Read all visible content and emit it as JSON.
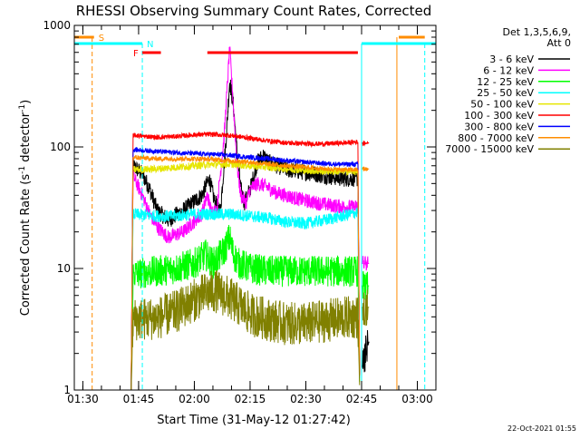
{
  "chart_data": {
    "type": "line",
    "title": "RHESSI Observing Summary Count Rates, Corrected",
    "xlabel": "Start Time (31-May-12 01:27:42)",
    "ylabel_main": "Corrected Count Rate (s",
    "ylabel_sup1": "-1",
    "ylabel_mid": " detector",
    "ylabel_sup2": "-1",
    "ylabel_end": ")",
    "yscale": "log",
    "ylim": [
      1,
      1000
    ],
    "xlim": [
      "01:27:42",
      "03:05:00"
    ],
    "x_ticks": [
      "01:30",
      "01:45",
      "02:00",
      "02:15",
      "02:30",
      "02:45",
      "03:00"
    ],
    "y_ticks": [
      {
        "value": 1,
        "label": "1"
      },
      {
        "value": 10,
        "label": "10"
      },
      {
        "value": 100,
        "label": "100"
      },
      {
        "value": 1000,
        "label": "1000"
      }
    ],
    "legend": {
      "placement": "right",
      "header": [
        "Det 1,3,5,6,9,",
        "Att 0"
      ],
      "entries": [
        {
          "label": "3 - 6 keV",
          "color": "#000000"
        },
        {
          "label": "6 - 12 keV",
          "color": "#ff00ff"
        },
        {
          "label": "12 - 25 keV",
          "color": "#00ff00"
        },
        {
          "label": "25 - 50 keV",
          "color": "#00ffff"
        },
        {
          "label": "50 - 100 keV",
          "color": "#e6e600"
        },
        {
          "label": "100 - 300 keV",
          "color": "#ff0000"
        },
        {
          "label": "300 - 800 keV",
          "color": "#0000ff"
        },
        {
          "label": "800 - 7000 keV",
          "color": "#ff8c00"
        },
        {
          "label": "7000 - 15000 keV",
          "color": "#808000"
        }
      ]
    },
    "series": [
      {
        "name": "3 - 6 keV",
        "color": "#000000",
        "noise": 0.07,
        "points": [
          [
            "01:43:00",
            1
          ],
          [
            "01:43:30",
            70
          ],
          [
            "01:46:00",
            60
          ],
          [
            "01:48:00",
            45
          ],
          [
            "01:50:00",
            30
          ],
          [
            "01:53:00",
            25
          ],
          [
            "01:57:00",
            30
          ],
          [
            "02:02:00",
            40
          ],
          [
            "02:04:00",
            55
          ],
          [
            "02:05:30",
            35
          ],
          [
            "02:07:00",
            30
          ],
          [
            "02:08:30",
            110
          ],
          [
            "02:09:30",
            350
          ],
          [
            "02:10:30",
            220
          ],
          [
            "02:11:30",
            90
          ],
          [
            "02:12:30",
            45
          ],
          [
            "02:13:30",
            35
          ],
          [
            "02:15:00",
            45
          ],
          [
            "02:17:00",
            75
          ],
          [
            "02:18:30",
            85
          ],
          [
            "02:20:00",
            75
          ],
          [
            "02:25:00",
            65
          ],
          [
            "02:30:00",
            62
          ],
          [
            "02:35:00",
            58
          ],
          [
            "02:40:00",
            55
          ],
          [
            "02:44:00",
            55
          ],
          [
            "02:44:30",
            1
          ]
        ]
      },
      {
        "name": "6 - 12 keV",
        "color": "#ff00ff",
        "noise": 0.06,
        "points": [
          [
            "01:43:00",
            1
          ],
          [
            "01:43:30",
            58
          ],
          [
            "01:46:00",
            40
          ],
          [
            "01:48:00",
            28
          ],
          [
            "01:50:00",
            22
          ],
          [
            "01:53:00",
            18
          ],
          [
            "01:57:00",
            20
          ],
          [
            "02:02:00",
            28
          ],
          [
            "02:03:30",
            40
          ],
          [
            "02:04:30",
            30
          ],
          [
            "02:06:00",
            30
          ],
          [
            "02:08:00",
            120
          ],
          [
            "02:09:30",
            650
          ],
          [
            "02:10:30",
            220
          ],
          [
            "02:11:30",
            70
          ],
          [
            "02:12:30",
            40
          ],
          [
            "02:14:00",
            35
          ],
          [
            "02:15:00",
            45
          ],
          [
            "02:17:00",
            50
          ],
          [
            "02:19:00",
            48
          ],
          [
            "02:22:00",
            42
          ],
          [
            "02:27:00",
            38
          ],
          [
            "02:32:00",
            35
          ],
          [
            "02:37:00",
            33
          ],
          [
            "02:41:00",
            32
          ],
          [
            "02:44:00",
            32
          ],
          [
            "02:44:30",
            1
          ]
        ]
      },
      {
        "name": "12 - 25 keV",
        "color": "#00ff00",
        "noise": 0.13,
        "points": [
          [
            "01:43:00",
            1
          ],
          [
            "01:43:30",
            9
          ],
          [
            "01:50:00",
            9.5
          ],
          [
            "01:55:00",
            10
          ],
          [
            "02:00:00",
            11
          ],
          [
            "02:03:00",
            13
          ],
          [
            "02:05:00",
            11
          ],
          [
            "02:08:00",
            14
          ],
          [
            "02:09:30",
            18
          ],
          [
            "02:10:30",
            13
          ],
          [
            "02:12:00",
            11
          ],
          [
            "02:15:00",
            10
          ],
          [
            "02:20:00",
            9.5
          ],
          [
            "02:25:00",
            9.5
          ],
          [
            "02:30:00",
            9.5
          ],
          [
            "02:35:00",
            9.5
          ],
          [
            "02:44:00",
            9.5
          ],
          [
            "02:44:30",
            1
          ]
        ]
      },
      {
        "name": "25 - 50 keV",
        "color": "#00ffff",
        "noise": 0.05,
        "points": [
          [
            "01:43:00",
            1
          ],
          [
            "01:43:30",
            28
          ],
          [
            "01:50:00",
            27
          ],
          [
            "01:55:00",
            27
          ],
          [
            "02:00:00",
            28
          ],
          [
            "02:05:00",
            28
          ],
          [
            "02:10:00",
            28
          ],
          [
            "02:15:00",
            27
          ],
          [
            "02:20:00",
            26
          ],
          [
            "02:25:00",
            24
          ],
          [
            "02:30:00",
            23.5
          ],
          [
            "02:35:00",
            25
          ],
          [
            "02:40:00",
            27
          ],
          [
            "02:44:00",
            29
          ],
          [
            "02:44:30",
            1
          ]
        ]
      },
      {
        "name": "50 - 100 keV",
        "color": "#e6e600",
        "noise": 0.03,
        "points": [
          [
            "01:43:00",
            1
          ],
          [
            "01:43:30",
            65
          ],
          [
            "01:50:00",
            66
          ],
          [
            "01:55:00",
            68
          ],
          [
            "02:00:00",
            70
          ],
          [
            "02:05:00",
            72
          ],
          [
            "02:10:00",
            72
          ],
          [
            "02:15:00",
            70
          ],
          [
            "02:20:00",
            68
          ],
          [
            "02:25:00",
            66
          ],
          [
            "02:30:00",
            64
          ],
          [
            "02:35:00",
            63
          ],
          [
            "02:40:00",
            63
          ],
          [
            "02:44:00",
            63
          ],
          [
            "02:44:30",
            1
          ]
        ]
      },
      {
        "name": "100 - 300 keV",
        "color": "#ff0000",
        "noise": 0.02,
        "points": [
          [
            "01:43:00",
            1
          ],
          [
            "01:43:30",
            125
          ],
          [
            "01:50:00",
            120
          ],
          [
            "01:55:00",
            122
          ],
          [
            "02:00:00",
            126
          ],
          [
            "02:05:00",
            127
          ],
          [
            "02:10:00",
            124
          ],
          [
            "02:15:00",
            118
          ],
          [
            "02:20:00",
            112
          ],
          [
            "02:25:00",
            108
          ],
          [
            "02:30:00",
            106
          ],
          [
            "02:35:00",
            106
          ],
          [
            "02:40:00",
            108
          ],
          [
            "02:44:00",
            110
          ],
          [
            "02:44:30",
            1
          ]
        ]
      },
      {
        "name": "300 - 800 keV",
        "color": "#0000ff",
        "noise": 0.02,
        "points": [
          [
            "01:43:00",
            1
          ],
          [
            "01:43:30",
            95
          ],
          [
            "01:50:00",
            92
          ],
          [
            "01:55:00",
            90
          ],
          [
            "02:00:00",
            88
          ],
          [
            "02:05:00",
            87
          ],
          [
            "02:10:00",
            85
          ],
          [
            "02:15:00",
            82
          ],
          [
            "02:20:00",
            80
          ],
          [
            "02:25:00",
            77
          ],
          [
            "02:30:00",
            75
          ],
          [
            "02:35:00",
            73
          ],
          [
            "02:40:00",
            72
          ],
          [
            "02:44:00",
            72
          ],
          [
            "02:44:30",
            1
          ]
        ]
      },
      {
        "name": "800 - 7000 keV",
        "color": "#ff8c00",
        "noise": 0.02,
        "points": [
          [
            "01:43:00",
            1
          ],
          [
            "01:43:30",
            82
          ],
          [
            "01:50:00",
            80
          ],
          [
            "01:55:00",
            80
          ],
          [
            "02:00:00",
            80
          ],
          [
            "02:05:00",
            79
          ],
          [
            "02:10:00",
            77
          ],
          [
            "02:15:00",
            75
          ],
          [
            "02:20:00",
            72
          ],
          [
            "02:25:00",
            70
          ],
          [
            "02:30:00",
            68
          ],
          [
            "02:35:00",
            66
          ],
          [
            "02:40:00",
            65
          ],
          [
            "02:44:00",
            65
          ],
          [
            "02:44:30",
            1
          ]
        ]
      },
      {
        "name": "7000 - 15000 keV",
        "color": "#808000",
        "noise": 0.18,
        "points": [
          [
            "01:43:00",
            1
          ],
          [
            "01:43:30",
            3.8
          ],
          [
            "01:50:00",
            3.9
          ],
          [
            "01:55:00",
            4.4
          ],
          [
            "02:00:00",
            5.5
          ],
          [
            "02:03:00",
            6.2
          ],
          [
            "02:06:00",
            6.5
          ],
          [
            "02:09:00",
            5.8
          ],
          [
            "02:12:00",
            5
          ],
          [
            "02:15:00",
            4.2
          ],
          [
            "02:20:00",
            3.8
          ],
          [
            "02:25:00",
            3.5
          ],
          [
            "02:30:00",
            3.5
          ],
          [
            "02:35:00",
            3.7
          ],
          [
            "02:40:00",
            3.9
          ],
          [
            "02:44:00",
            4
          ],
          [
            "02:44:30",
            1
          ]
        ]
      }
    ],
    "tail_series": [
      {
        "name": "3 - 6 keV",
        "color": "#000000",
        "noise": 0.15,
        "points": [
          [
            "02:45:00",
            1.5
          ],
          [
            "02:47:00",
            2.5
          ]
        ]
      },
      {
        "name": "6 - 12 keV",
        "color": "#ff00ff",
        "noise": 0.06,
        "points": [
          [
            "02:45:00",
            11
          ],
          [
            "02:47:00",
            11
          ]
        ]
      },
      {
        "name": "12 - 25 keV",
        "color": "#00ff00",
        "noise": 0.12,
        "points": [
          [
            "02:45:00",
            7.2
          ],
          [
            "02:47:00",
            7.2
          ]
        ]
      },
      {
        "name": "7000 - 15000 keV",
        "color": "#808000",
        "noise": 0.15,
        "points": [
          [
            "02:45:00",
            4.8
          ],
          [
            "02:47:00",
            4.8
          ]
        ]
      },
      {
        "name": "800 - 7000 keV",
        "color": "#ff8c00",
        "noise": 0.02,
        "points": [
          [
            "02:45:00",
            66
          ],
          [
            "02:47:00",
            66
          ]
        ]
      },
      {
        "name": "100 - 300 keV",
        "color": "#ff0000",
        "noise": 0.02,
        "points": [
          [
            "02:45:00",
            108
          ],
          [
            "02:47:00",
            108
          ]
        ]
      }
    ],
    "flags": [
      {
        "label": "S",
        "color": "#ff8c00",
        "bars": [
          [
            "01:27:42",
            "01:33:00"
          ],
          [
            "02:55:00",
            "03:02:00"
          ]
        ],
        "edges": [
          "01:32:30",
          "02:54:30"
        ],
        "edges_dashed": [
          true,
          false
        ]
      },
      {
        "label": "N",
        "color": "#00ffff",
        "bars": [
          [
            "01:27:42",
            "01:46:00"
          ],
          [
            "02:45:00",
            "03:05:00"
          ]
        ],
        "edges": [
          "01:46:00",
          "02:45:00",
          "03:02:00"
        ],
        "edges_dashed": [
          true,
          false,
          true
        ]
      },
      {
        "label": "F",
        "color": "#ff0000",
        "bars": [
          [
            "01:46:00",
            "01:51:00"
          ],
          [
            "02:03:30",
            "02:44:00"
          ]
        ],
        "edges": [],
        "edges_dashed": []
      }
    ],
    "footer_date": "22-Oct-2021 01:55"
  }
}
